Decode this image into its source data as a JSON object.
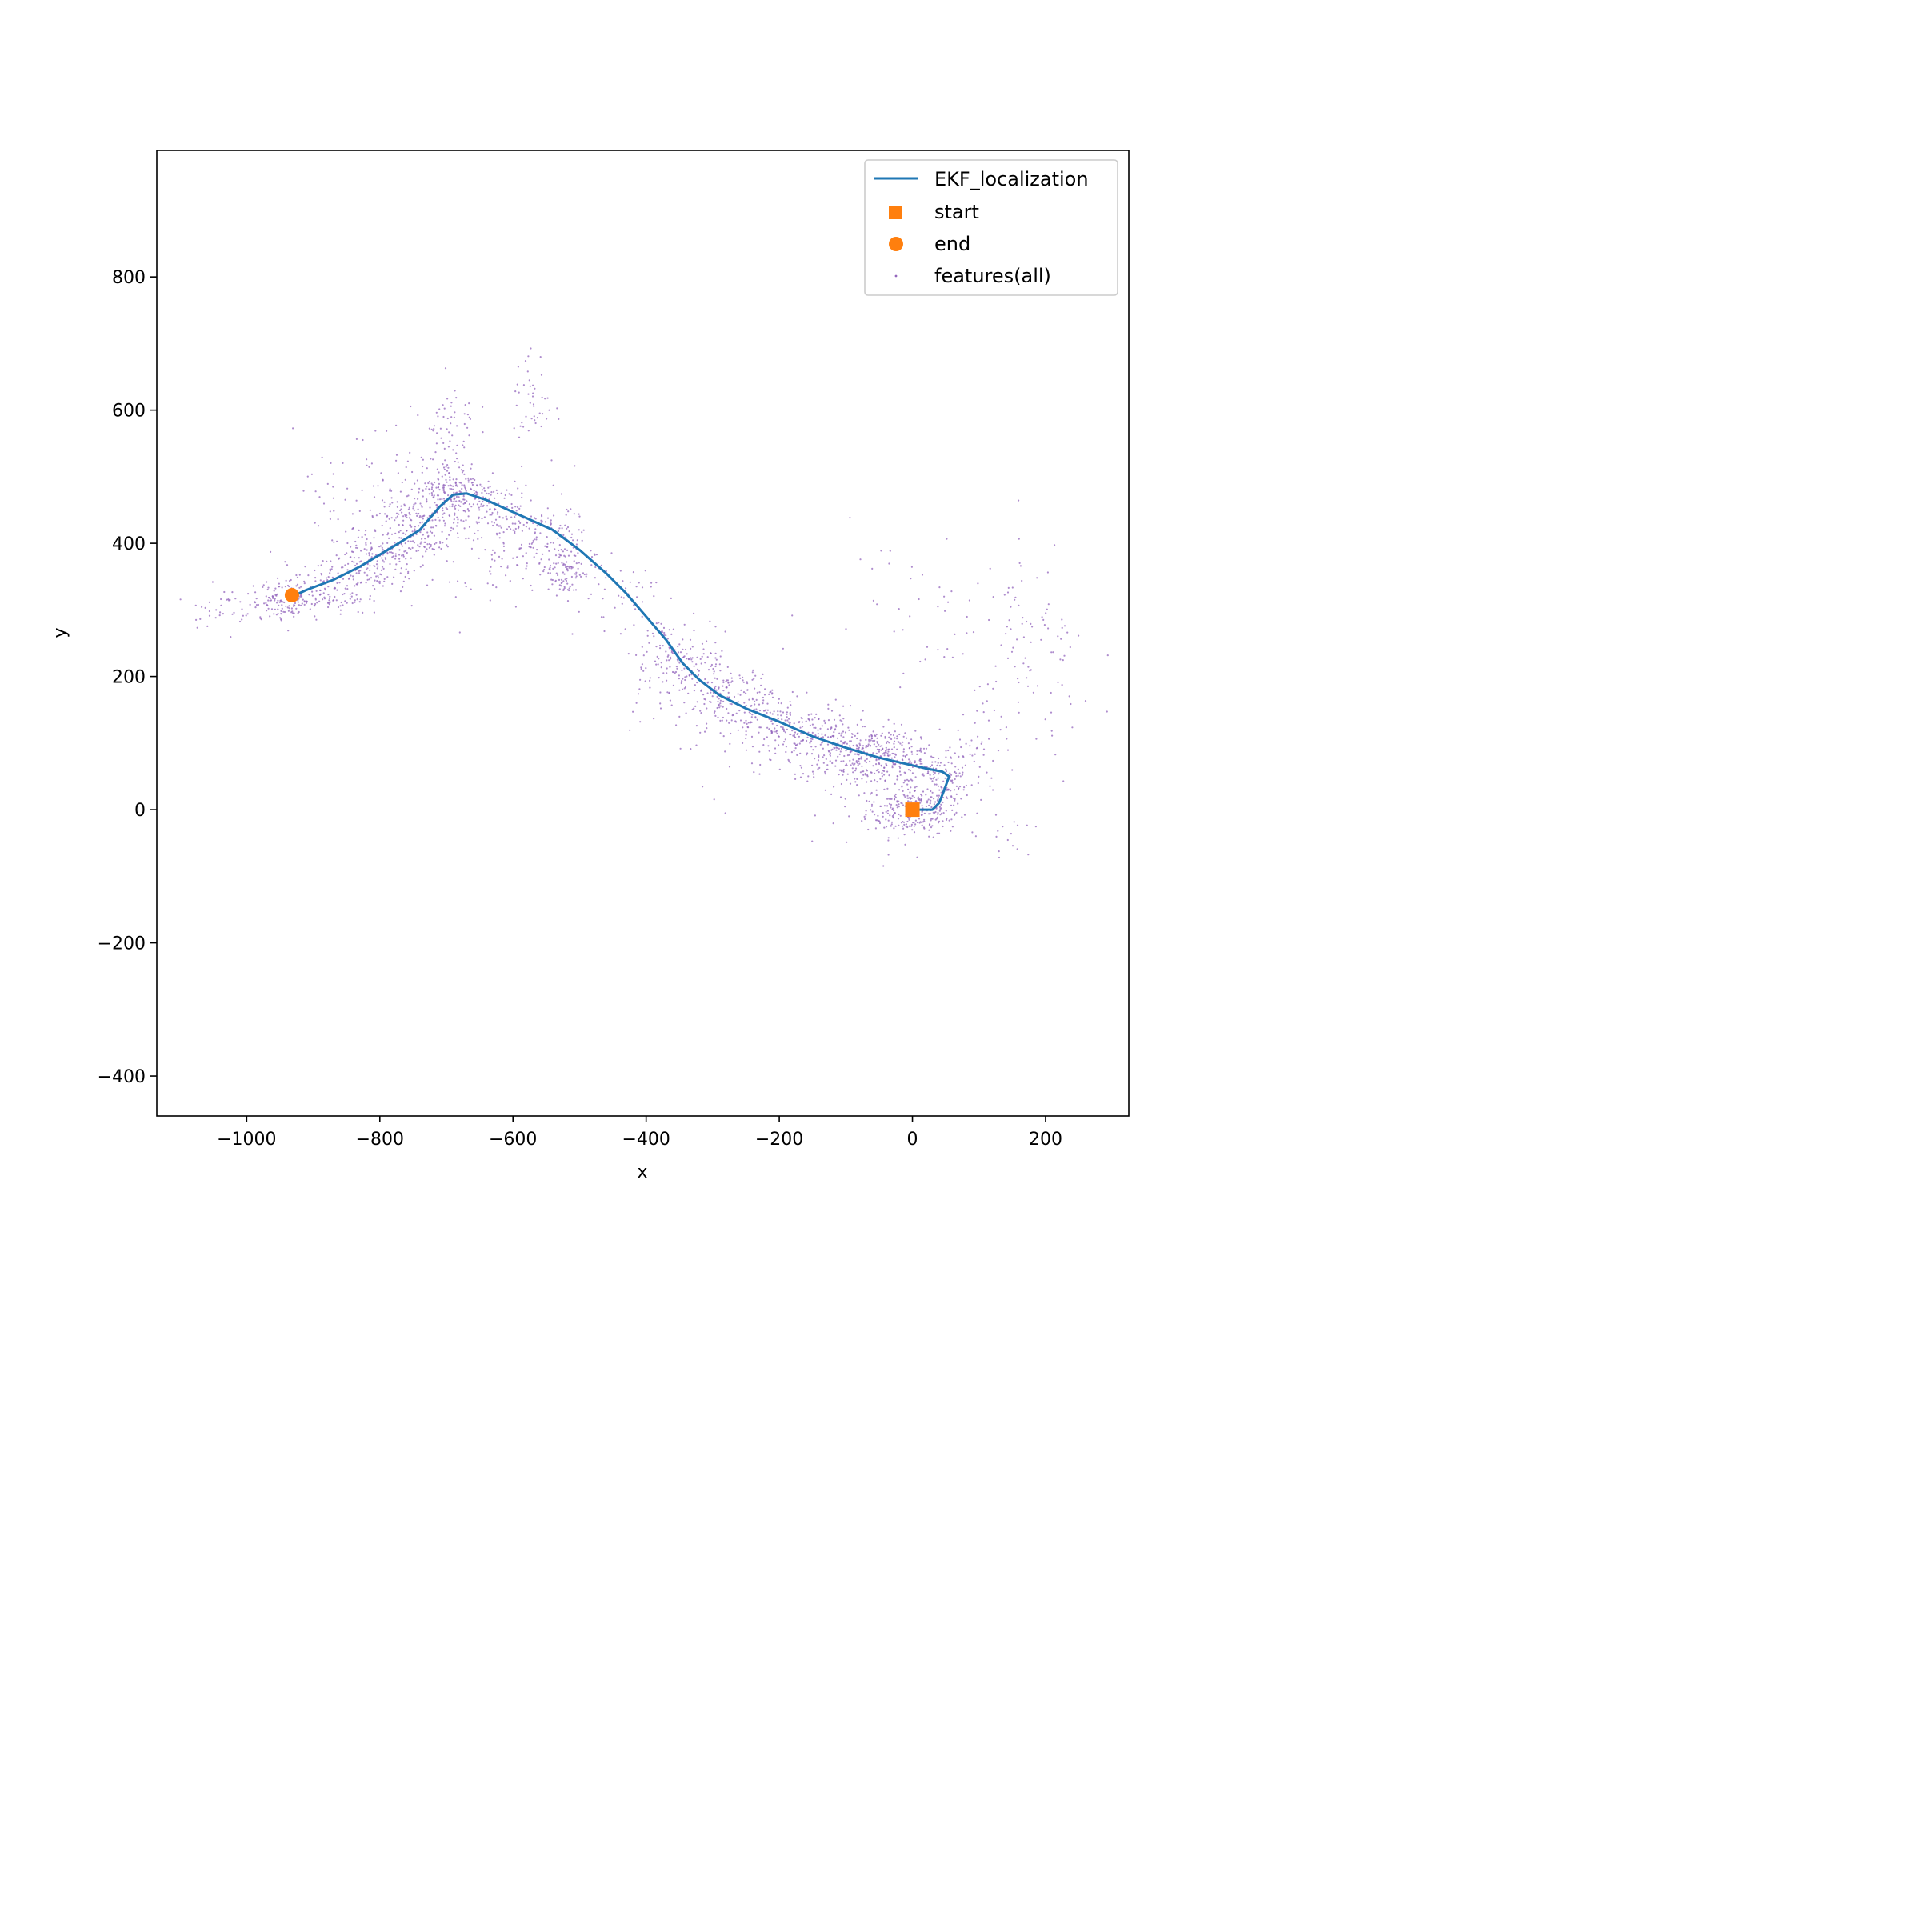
{
  "chart_data": {
    "type": "scatter",
    "title": "",
    "xlabel": "x",
    "ylabel": "y",
    "xlim": [
      -1135,
      325
    ],
    "ylim": [
      -460,
      990
    ],
    "xticks": [
      -1000,
      -800,
      -600,
      -400,
      -200,
      0,
      200
    ],
    "yticks": [
      -400,
      -200,
      0,
      200,
      400,
      600,
      800
    ],
    "grid": false,
    "legend_position": "top-right",
    "colors": {
      "trajectory": "#1f77b4",
      "markers": "#ff7f0e",
      "features": "#9467bd"
    },
    "legend": [
      {
        "label": "EKF_localization",
        "kind": "line"
      },
      {
        "label": "start",
        "kind": "square"
      },
      {
        "label": "end",
        "kind": "circle"
      },
      {
        "label": "features(all)",
        "kind": "dot"
      }
    ],
    "series": [
      {
        "name": "EKF_localization",
        "kind": "line",
        "points": [
          [
            0,
            0
          ],
          [
            30,
            0
          ],
          [
            40,
            10
          ],
          [
            48,
            30
          ],
          [
            55,
            50
          ],
          [
            45,
            57
          ],
          [
            20,
            62
          ],
          [
            -50,
            78
          ],
          [
            -100,
            93
          ],
          [
            -150,
            110
          ],
          [
            -200,
            132
          ],
          [
            -250,
            152
          ],
          [
            -290,
            172
          ],
          [
            -320,
            195
          ],
          [
            -345,
            220
          ],
          [
            -370,
            255
          ],
          [
            -400,
            290
          ],
          [
            -430,
            325
          ],
          [
            -460,
            355
          ],
          [
            -500,
            390
          ],
          [
            -540,
            420
          ],
          [
            -600,
            447
          ],
          [
            -640,
            465
          ],
          [
            -670,
            475
          ],
          [
            -690,
            473
          ],
          [
            -710,
            455
          ],
          [
            -740,
            420
          ],
          [
            -780,
            395
          ],
          [
            -830,
            365
          ],
          [
            -870,
            345
          ],
          [
            -910,
            330
          ],
          [
            -932,
            320
          ]
        ]
      },
      {
        "name": "start",
        "kind": "square",
        "points": [
          [
            0,
            0
          ]
        ]
      },
      {
        "name": "end",
        "kind": "circle",
        "points": [
          [
            -932,
            322
          ]
        ]
      },
      {
        "name": "features(all)",
        "kind": "dots",
        "clusters": [
          [
            0,
            0,
            35,
            20,
            280
          ],
          [
            45,
            30,
            20,
            25,
            80
          ],
          [
            30,
            60,
            40,
            15,
            70
          ],
          [
            -40,
            80,
            40,
            20,
            200
          ],
          [
            -100,
            90,
            40,
            25,
            200
          ],
          [
            -160,
            115,
            40,
            20,
            120
          ],
          [
            -220,
            135,
            40,
            25,
            120
          ],
          [
            -280,
            170,
            35,
            25,
            130
          ],
          [
            -330,
            210,
            30,
            25,
            100
          ],
          [
            -370,
            240,
            25,
            30,
            60
          ],
          [
            -440,
            320,
            25,
            25,
            40
          ],
          [
            -520,
            360,
            20,
            20,
            90
          ],
          [
            -560,
            390,
            30,
            25,
            90
          ],
          [
            -610,
            440,
            30,
            25,
            100
          ],
          [
            -660,
            470,
            25,
            20,
            80
          ],
          [
            -690,
            480,
            25,
            25,
            120
          ],
          [
            -730,
            440,
            30,
            30,
            150
          ],
          [
            -770,
            410,
            25,
            30,
            120
          ],
          [
            -820,
            370,
            30,
            25,
            130
          ],
          [
            -880,
            330,
            30,
            20,
            120
          ],
          [
            -940,
            315,
            25,
            15,
            130
          ],
          [
            -1040,
            305,
            25,
            15,
            40
          ],
          [
            -695,
            570,
            20,
            40,
            60
          ],
          [
            -570,
            610,
            15,
            40,
            45
          ],
          [
            -520,
            420,
            15,
            50,
            30
          ],
          [
            -850,
            440,
            40,
            60,
            40
          ],
          [
            -640,
            360,
            30,
            40,
            30
          ],
          [
            -750,
            500,
            60,
            60,
            40
          ],
          [
            110,
            80,
            25,
            40,
            40
          ],
          [
            180,
            200,
            50,
            80,
            70
          ],
          [
            120,
            300,
            70,
            50,
            40
          ],
          [
            -30,
            310,
            60,
            60,
            25
          ],
          [
            140,
            -20,
            40,
            30,
            15
          ],
          [
            -80,
            30,
            50,
            50,
            20
          ],
          [
            -250,
            80,
            80,
            40,
            20
          ],
          [
            -380,
            190,
            30,
            30,
            25
          ]
        ]
      }
    ]
  }
}
